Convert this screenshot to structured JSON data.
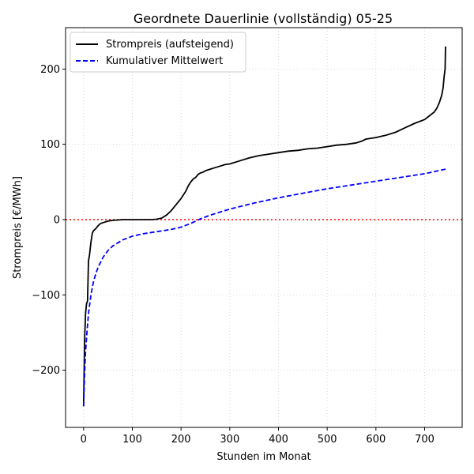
{
  "chart_data": {
    "type": "line",
    "title": "Geordnete Dauerlinie (vollständig) 05-25",
    "xlabel": "Stunden im Monat",
    "ylabel": "Strompreis [€/MWh]",
    "xlim": [
      -37,
      777
    ],
    "ylim": [
      -276,
      255
    ],
    "x_ticks": [
      0,
      100,
      200,
      300,
      400,
      500,
      600,
      700
    ],
    "y_ticks": [
      -200,
      -100,
      0,
      100,
      200
    ],
    "y_tick_labels": [
      "−200",
      "−100",
      "0",
      "100",
      "200"
    ],
    "grid": true,
    "legend_position": "top-left",
    "reference_line": {
      "y": 0,
      "color": "#ff0000",
      "style": "dotted"
    },
    "series": [
      {
        "name": "Strompreis (aufsteigend)",
        "color": "#000000",
        "style": "solid",
        "x": [
          0,
          2,
          4,
          6,
          8,
          10,
          12,
          15,
          18,
          20,
          25,
          30,
          35,
          40,
          50,
          60,
          70,
          80,
          100,
          120,
          140,
          150,
          160,
          170,
          180,
          190,
          200,
          210,
          215,
          220,
          225,
          230,
          235,
          240,
          245,
          250,
          260,
          270,
          280,
          290,
          300,
          320,
          340,
          360,
          380,
          400,
          420,
          440,
          460,
          480,
          500,
          520,
          540,
          560,
          570,
          580,
          600,
          620,
          640,
          660,
          680,
          700,
          710,
          720,
          725,
          730,
          735,
          738,
          740,
          741,
          742,
          743
        ],
        "y": [
          -248,
          -160,
          -125,
          -112,
          -108,
          -55,
          -48,
          -30,
          -18,
          -15,
          -12,
          -8,
          -5,
          -4,
          -2,
          -1,
          -0.5,
          0,
          0,
          0,
          0,
          0.5,
          2,
          6,
          12,
          20,
          28,
          38,
          45,
          50,
          54,
          56,
          60,
          62,
          63,
          65,
          67,
          69,
          71,
          73,
          74,
          78,
          82,
          85,
          87,
          89,
          91,
          92,
          94,
          95,
          97,
          99,
          100,
          102,
          104,
          107,
          109,
          112,
          116,
          122,
          128,
          133,
          138,
          143,
          148,
          155,
          165,
          175,
          190,
          195,
          200,
          230
        ]
      },
      {
        "name": "Kumulativer Mittelwert",
        "color": "#0000ff",
        "style": "dashed",
        "x": [
          0,
          2,
          4,
          6,
          8,
          10,
          15,
          20,
          25,
          30,
          40,
          50,
          60,
          80,
          100,
          120,
          140,
          160,
          180,
          200,
          220,
          240,
          260,
          280,
          300,
          350,
          400,
          450,
          500,
          550,
          600,
          650,
          700,
          743
        ],
        "y": [
          -248,
          -205,
          -175,
          -158,
          -140,
          -125,
          -100,
          -83,
          -72,
          -63,
          -50,
          -41,
          -35,
          -27,
          -22,
          -19,
          -17,
          -15,
          -13,
          -10,
          -5,
          1,
          6,
          10,
          14,
          22,
          29,
          35,
          41,
          46,
          51,
          56,
          61,
          67
        ]
      }
    ]
  }
}
